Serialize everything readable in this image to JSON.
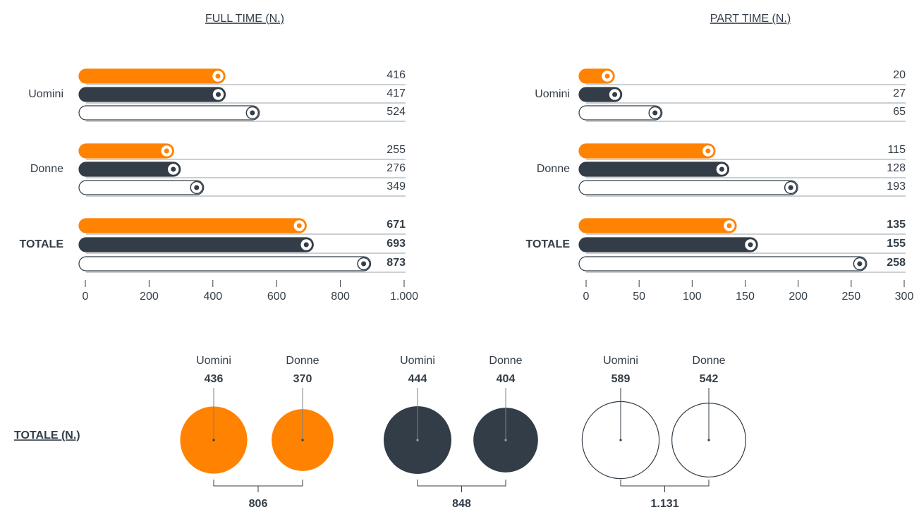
{
  "chart_data": [
    {
      "type": "bar",
      "title": "FULL TIME (N.)",
      "categories": [
        "Uomini",
        "Donne",
        "TOTALE"
      ],
      "series": [
        {
          "color": "#ff8200",
          "values": [
            416,
            255,
            671
          ]
        },
        {
          "color": "#333d47",
          "values": [
            417,
            276,
            693
          ]
        },
        {
          "color": "#ffffff",
          "values": [
            524,
            349,
            873
          ]
        }
      ],
      "xlim": [
        0,
        1000
      ],
      "xticks": [
        0,
        200,
        400,
        600,
        800,
        {
          "value": 1000,
          "label": "1.000"
        }
      ]
    },
    {
      "type": "bar",
      "title": "PART TIME (N.)",
      "categories": [
        "Uomini",
        "Donne",
        "TOTALE"
      ],
      "series": [
        {
          "color": "#ff8200",
          "values": [
            20,
            115,
            135
          ]
        },
        {
          "color": "#333d47",
          "values": [
            27,
            128,
            155
          ]
        },
        {
          "color": "#ffffff",
          "values": [
            65,
            193,
            258
          ]
        }
      ],
      "xlim": [
        0,
        300
      ],
      "xticks": [
        0,
        50,
        100,
        150,
        200,
        250,
        300
      ]
    },
    {
      "type": "bubble",
      "title": "TOTALE (N.)",
      "categories": [
        "Uomini",
        "Donne"
      ],
      "series": [
        {
          "color": "#ff8200",
          "values": [
            436,
            370
          ]
        },
        {
          "color": "#333d47",
          "values": [
            444,
            404
          ]
        },
        {
          "color": "#ffffff",
          "values": [
            589,
            542
          ]
        }
      ],
      "totals": {
        "values": [
          806,
          848,
          1131
        ],
        "value_labels": [
          "806",
          "848",
          "1.131"
        ]
      }
    }
  ]
}
